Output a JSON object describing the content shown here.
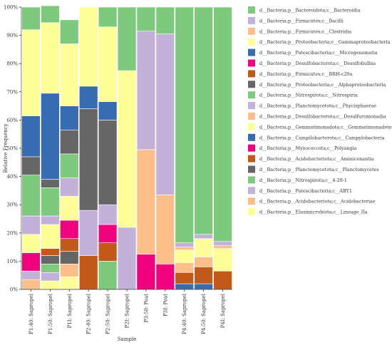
{
  "chart_data": {
    "type": "bar",
    "stacked": true,
    "xlabel": "Sample",
    "ylabel": "Relative Frequency",
    "ylim": [
      0,
      100
    ],
    "yticks": [
      "0%",
      "10%",
      "20%",
      "30%",
      "40%",
      "50%",
      "60%",
      "70%",
      "80%",
      "90%",
      "100%"
    ],
    "categories": [
      "P1:40: Sapropel",
      "P1:50: Sapropel",
      "P1I: Sapropel",
      "P2:40: Sapropel",
      "P2:50: Sapropel",
      "P2I: Sapropel",
      "P3:50: Peat",
      "P3I: Peat",
      "P4:40: Sapropel",
      "P4:50: Sapropel",
      "P4I: Sapropel"
    ],
    "legend_position": "right",
    "series": [
      {
        "name": "d__Bacteria;p__Elusimicrobiota;c__Lineage_IIa",
        "color": "#FFFF99",
        "values": [
          0,
          0,
          0,
          0,
          0,
          0,
          0,
          0,
          0,
          0,
          0
        ]
      },
      {
        "name": "d__Bacteria;p__Acidobacteriota;c__Acidobacteriae",
        "color": "#FDBF8A",
        "values": [
          3.5,
          3,
          4.5,
          0,
          0,
          0,
          0,
          0,
          0,
          0,
          0
        ]
      },
      {
        "name": "d__Bacteria;p__Patescibacteria;c__ABY1",
        "color": "#C3B1DA",
        "values": [
          3,
          3,
          0,
          0,
          0,
          0,
          0,
          0,
          0,
          0,
          0
        ]
      },
      {
        "name": "d__Bacteria;p__Nitrospirota;c__4-29-1",
        "color": "#7FC97F",
        "values": [
          0,
          3,
          0,
          0,
          10,
          0,
          0,
          0,
          0,
          0,
          0
        ]
      },
      {
        "name": "d__Bacteria;p__Planctomycetota;c__Planctomycetes",
        "color": "#666666",
        "values": [
          0,
          3,
          0,
          0,
          0,
          0,
          0,
          0,
          0,
          0,
          0
        ]
      },
      {
        "name": "d__Bacteria;p__Acidobacteriota;c__Aminicenantia",
        "color": "#C0591A",
        "values": [
          0,
          2.5,
          0,
          12,
          6.5,
          0,
          0,
          0,
          0,
          0,
          0
        ]
      },
      {
        "name": "d__Bacteria;p__Myxococcota;c__Polyangia",
        "color": "#F0027F",
        "values": [
          6.5,
          0,
          0,
          0,
          0,
          0,
          0,
          0,
          0,
          0,
          0
        ]
      },
      {
        "name": "d__Bacteria;p__Campilobacterota;c__Campylobacteria",
        "color": "#386CB0",
        "values": [
          0,
          0,
          0,
          0,
          0,
          0,
          0,
          0,
          0,
          0,
          0
        ]
      },
      {
        "name": "d__Bacteria;p__Gemmatimonadota;c__Gemmatimonadetes",
        "color": "#FFFF99",
        "values": [
          6.5,
          8.5,
          0,
          0,
          0,
          0,
          0,
          0,
          0,
          0,
          0
        ]
      },
      {
        "name": "d__Bacteria;p__Desulfobacterota;c__Desulfuromonadia",
        "color": "#FDBF8A",
        "values": [
          0,
          0,
          4.5,
          0,
          0,
          0,
          37,
          24.5,
          3.5,
          3.5,
          0
        ]
      },
      {
        "name": "d__Bacteria;p__Planctomycetota;c__Phycisphaerae",
        "color": "#C3B1DA",
        "values": [
          0,
          0,
          0,
          0,
          0,
          0,
          0,
          0,
          0,
          0,
          0
        ]
      },
      {
        "name": "d__Bacteria;p__Nitrospirota;c__Nitrospiria",
        "color": "#7FC97F",
        "values": [
          0,
          0,
          0,
          0,
          0,
          0,
          0,
          0,
          0,
          0,
          0
        ]
      },
      {
        "name": "d__Bacteria;p__Proteobacteria;c__Alphaproteobacteria",
        "color": "#666666",
        "values": [
          0,
          0,
          8.5,
          0,
          0,
          0,
          0,
          0,
          0,
          0,
          0
        ]
      },
      {
        "name": "d__Bacteria;p__Firmicutes;c__BRH-c20a",
        "color": "#C0591A",
        "values": [
          0,
          0,
          4.5,
          0,
          0,
          0,
          0,
          0,
          4,
          6,
          6.5
        ]
      },
      {
        "name": "d__Bacteria;p__Desulfobacterota;c__Desulfobulbia",
        "color": "#F0027F",
        "values": [
          0,
          0,
          6.5,
          0,
          6.5,
          0,
          12.5,
          9,
          0,
          0,
          0
        ]
      },
      {
        "name": "d__Bacteria;p__Patescibacteria;c__Microgenomatia",
        "color": "#386CB0",
        "values": [
          14.5,
          30.5,
          8.5,
          8,
          6.5,
          0,
          0,
          0,
          2,
          2,
          0
        ]
      },
      {
        "name": "d__Bacteria;p__Proteobacteria;c__Gammaproteobacteria",
        "color": "#FFFF99",
        "values": [
          30.5,
          25,
          22,
          28,
          26.5,
          55.5,
          0,
          0,
          4.5,
          6.5,
          8
        ]
      },
      {
        "name": "d__Bacteria;p__Firmicutes;c__Clostridia",
        "color": "#FDBF8A",
        "values": [
          0,
          0,
          0,
          0,
          0,
          0,
          0,
          0,
          1,
          1,
          0
        ]
      },
      {
        "name": "d__Bacteria;p__Firmicutes;c__Bacilli",
        "color": "#C3B1DA",
        "values": [
          0,
          0,
          0,
          0,
          0,
          22,
          42,
          57,
          1.5,
          1.5,
          1.5
        ]
      },
      {
        "name": "d__Bacteria;p__Bacteroidota;c__Bacteroidia",
        "color": "#7FC97F",
        "values": [
          8,
          6,
          8.5,
          0,
          7,
          22.5,
          8.5,
          9.5,
          81.5,
          80,
          81.5
        ]
      }
    ]
  },
  "bar_segments": [
    [
      [
        "#FDBF8A",
        3.5
      ],
      [
        "#C3B1DA",
        3
      ],
      [
        "#F0027F",
        6.5
      ],
      [
        "#FFFF99",
        6.5
      ],
      [
        "#C3B1DA",
        6.5
      ],
      [
        "#7FC97F",
        14.5
      ],
      [
        "#666666",
        6.5
      ],
      [
        "#386CB0",
        14.5
      ],
      [
        "#FFFF99",
        30.5
      ],
      [
        "#7FC97F",
        8
      ]
    ],
    [
      [
        "#FFFF99",
        3
      ],
      [
        "#C3B1DA",
        3
      ],
      [
        "#7FC97F",
        3
      ],
      [
        "#666666",
        3
      ],
      [
        "#C0591A",
        2.5
      ],
      [
        "#FFFF99",
        8.5
      ],
      [
        "#C3B1DA",
        3
      ],
      [
        "#7FC97F",
        10
      ],
      [
        "#666666",
        3
      ],
      [
        "#386CB0",
        30.5
      ],
      [
        "#FFFF99",
        25
      ],
      [
        "#7FC97F",
        6
      ]
    ],
    [
      [
        "#FFFF99",
        4.5
      ],
      [
        "#FDBF8A",
        4.5
      ],
      [
        "#666666",
        4.5
      ],
      [
        "#C0591A",
        4.5
      ],
      [
        "#F0027F",
        6.5
      ],
      [
        "#FFFF99",
        8.5
      ],
      [
        "#C3B1DA",
        6.5
      ],
      [
        "#7FC97F",
        8.5
      ],
      [
        "#666666",
        8.5
      ],
      [
        "#386CB0",
        8.5
      ],
      [
        "#FFFF99",
        22
      ],
      [
        "#7FC97F",
        8.5
      ]
    ],
    [
      [
        "#C0591A",
        12
      ],
      [
        "#C3B1DA",
        16
      ],
      [
        "#666666",
        36
      ],
      [
        "#386CB0",
        8
      ],
      [
        "#FFFF99",
        28
      ]
    ],
    [
      [
        "#7FC97F",
        10
      ],
      [
        "#C0591A",
        6.5
      ],
      [
        "#F0027F",
        6.5
      ],
      [
        "#C3B1DA",
        7
      ],
      [
        "#666666",
        30
      ],
      [
        "#386CB0",
        6.5
      ],
      [
        "#FFFF99",
        26.5
      ],
      [
        "#7FC97F",
        7
      ]
    ],
    [
      [
        "#C3B1DA",
        22
      ],
      [
        "#FFFF99",
        55.5
      ],
      [
        "#7FC97F",
        22.5
      ]
    ],
    [
      [
        "#F0027F",
        12.5
      ],
      [
        "#FDBF8A",
        37
      ],
      [
        "#C3B1DA",
        42
      ],
      [
        "#7FC97F",
        8.5
      ]
    ],
    [
      [
        "#F0027F",
        9
      ],
      [
        "#FDBF8A",
        24.5
      ],
      [
        "#C3B1DA",
        57
      ],
      [
        "#7FC97F",
        9.5
      ]
    ],
    [
      [
        "#386CB0",
        2
      ],
      [
        "#C0591A",
        4
      ],
      [
        "#FDBF8A",
        3.5
      ],
      [
        "#FFFF99",
        4.5
      ],
      [
        "#FDBF8A",
        1
      ],
      [
        "#C3B1DA",
        1.5
      ],
      [
        "#7FC97F",
        83.5
      ]
    ],
    [
      [
        "#386CB0",
        2
      ],
      [
        "#C0591A",
        6
      ],
      [
        "#FDBF8A",
        3.5
      ],
      [
        "#FFFF99",
        6.5
      ],
      [
        "#C3B1DA",
        1.5
      ],
      [
        "#7FC97F",
        80.5
      ]
    ],
    [
      [
        "#C0591A",
        6.5
      ],
      [
        "#FFFF99",
        8
      ],
      [
        "#FDBF8A",
        1
      ],
      [
        "#C3B1DA",
        1.5
      ],
      [
        "#7FC97F",
        83
      ]
    ]
  ],
  "legend": [
    {
      "label": "d__Bacteria;p__Bacteroidota;c__Bacteroidia",
      "color": "#7FC97F"
    },
    {
      "label": "d__Bacteria;p__Firmicutes;c__Bacilli",
      "color": "#C3B1DA"
    },
    {
      "label": "d__Bacteria;p__Firmicutes;c__Clostridia",
      "color": "#FDBF8A"
    },
    {
      "label": "d__Bacteria;p__Proteobacteria;c__Gammaproteobacteria",
      "color": "#FFFF99"
    },
    {
      "label": "d__Bacteria;p__Patescibacteria;c__Microgenomatia",
      "color": "#386CB0"
    },
    {
      "label": "d__Bacteria;p__Desulfobacterota;c__Desulfobulbia",
      "color": "#F0027F"
    },
    {
      "label": "d__Bacteria;p__Firmicutes;c__BRH-c20a",
      "color": "#C0591A"
    },
    {
      "label": "d__Bacteria;p__Proteobacteria;c__Alphaproteobacteria",
      "color": "#666666"
    },
    {
      "label": "d__Bacteria;p__Nitrospirota;c__Nitrospiria",
      "color": "#7FC97F"
    },
    {
      "label": "d__Bacteria;p__Planctomycetota;c__Phycisphaerae",
      "color": "#C3B1DA"
    },
    {
      "label": "d__Bacteria;p__Desulfobacterota;c__Desulfuromonadia",
      "color": "#FDBF8A"
    },
    {
      "label": "d__Bacteria;p__Gemmatimonadota;c__Gemmatimonadetes",
      "color": "#FFFF99"
    },
    {
      "label": "d__Bacteria;p__Campilobacterota;c__Campylobacteria",
      "color": "#386CB0"
    },
    {
      "label": "d__Bacteria;p__Myxococcota;c__Polyangia",
      "color": "#F0027F"
    },
    {
      "label": "d__Bacteria;p__Acidobacteriota;c__Aminicenantia",
      "color": "#C0591A"
    },
    {
      "label": "d__Bacteria;p__Planctomycetota;c__Planctomycetes",
      "color": "#666666"
    },
    {
      "label": "d__Bacteria;p__Nitrospirota;c__4-29-1",
      "color": "#7FC97F"
    },
    {
      "label": "d__Bacteria;p__Patescibacteria;c__ABY1",
      "color": "#C3B1DA"
    },
    {
      "label": "d__Bacteria;p__Acidobacteriota;c__Acidobacteriae",
      "color": "#FDBF8A"
    },
    {
      "label": "d__Bacteria;p__Elusimicrobiota;c__Lineage_IIa",
      "color": "#FFFF99"
    }
  ]
}
